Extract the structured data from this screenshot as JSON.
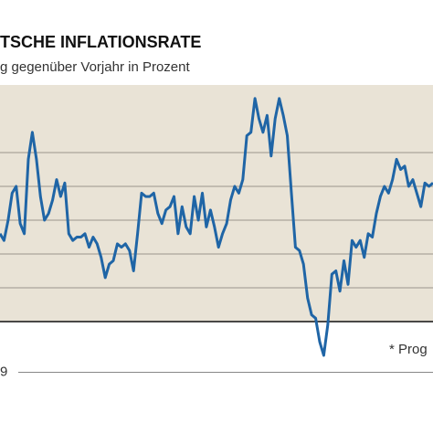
{
  "chart_data": {
    "type": "line",
    "title": "TSCHE INFLATIONSRATE",
    "subtitle": "g gegenüber Vorjahr in Prozent",
    "annotation": "* Prog",
    "x_label_fragment": "9",
    "series": [
      {
        "color": "#1f65a6",
        "values": [
          2.6,
          2.4,
          3.0,
          3.8,
          4.0,
          2.9,
          2.6,
          4.8,
          5.6,
          4.8,
          3.7,
          3.0,
          3.2,
          3.6,
          4.2,
          3.7,
          4.1,
          2.6,
          2.4,
          2.5,
          2.5,
          2.6,
          2.2,
          2.5,
          2.3,
          1.9,
          1.3,
          1.7,
          1.8,
          2.3,
          2.2,
          2.3,
          2.1,
          1.5,
          2.6,
          3.8,
          3.7,
          3.7,
          3.8,
          3.2,
          2.9,
          3.3,
          3.4,
          3.7,
          2.6,
          3.4,
          2.8,
          2.6,
          3.7,
          3.0,
          3.8,
          2.8,
          3.3,
          2.8,
          2.2,
          2.6,
          2.9,
          3.6,
          4.0,
          3.8,
          4.2,
          5.5,
          5.6,
          6.6,
          6.0,
          5.6,
          6.1,
          4.9,
          6.0,
          6.6,
          6.1,
          5.5,
          3.8,
          2.2,
          2.1,
          1.7,
          0.7,
          0.2,
          0.1,
          -0.6,
          -1.0,
          -0.1,
          1.4,
          1.5,
          0.9,
          1.8,
          1.1,
          2.4,
          2.2,
          2.4,
          1.9,
          2.6,
          2.5,
          3.2,
          3.7,
          4.0,
          3.8,
          4.2,
          4.8,
          4.5,
          4.6,
          4.0,
          4.2,
          3.8,
          3.4,
          4.1,
          4.0,
          4.1
        ]
      }
    ],
    "ylim": [
      -1.5,
      7
    ],
    "yticks": [
      0,
      1,
      2,
      3,
      4,
      5
    ],
    "grid": true
  }
}
